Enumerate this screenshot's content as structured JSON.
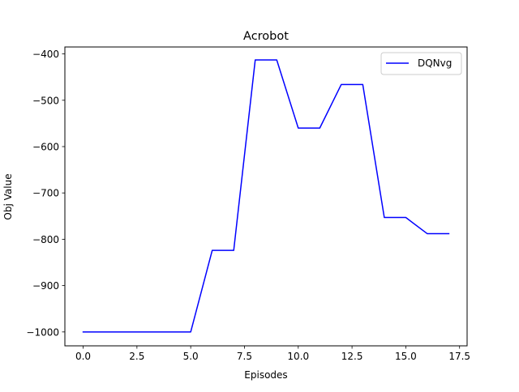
{
  "chart_data": {
    "type": "line",
    "title": "Acrobot",
    "xlabel": "Episodes",
    "ylabel": "Obj Value",
    "xlim": [
      -0.85,
      17.85
    ],
    "ylim": [
      -1030,
      -385
    ],
    "xticks": [
      0.0,
      2.5,
      5.0,
      7.5,
      10.0,
      12.5,
      15.0,
      17.5
    ],
    "xtick_labels": [
      "0.0",
      "2.5",
      "5.0",
      "7.5",
      "10.0",
      "12.5",
      "15.0",
      "17.5"
    ],
    "yticks": [
      -1000,
      -900,
      -800,
      -700,
      -600,
      -500,
      -400
    ],
    "ytick_labels": [
      "−1000",
      "−900",
      "−800",
      "−700",
      "−600",
      "−500",
      "−400"
    ],
    "grid": false,
    "legend_position": "top-right",
    "series": [
      {
        "name": "DQNvg",
        "color": "#0000ff",
        "x": [
          0,
          1,
          2,
          3,
          4,
          5,
          6,
          7,
          8,
          9,
          10,
          11,
          12,
          13,
          14,
          15,
          16,
          17
        ],
        "y": [
          -1000,
          -1000,
          -1000,
          -1000,
          -1000,
          -1000,
          -824,
          -824,
          -413,
          -413,
          -560,
          -560,
          -466,
          -466,
          -753,
          -753,
          -788,
          -788
        ]
      }
    ]
  }
}
